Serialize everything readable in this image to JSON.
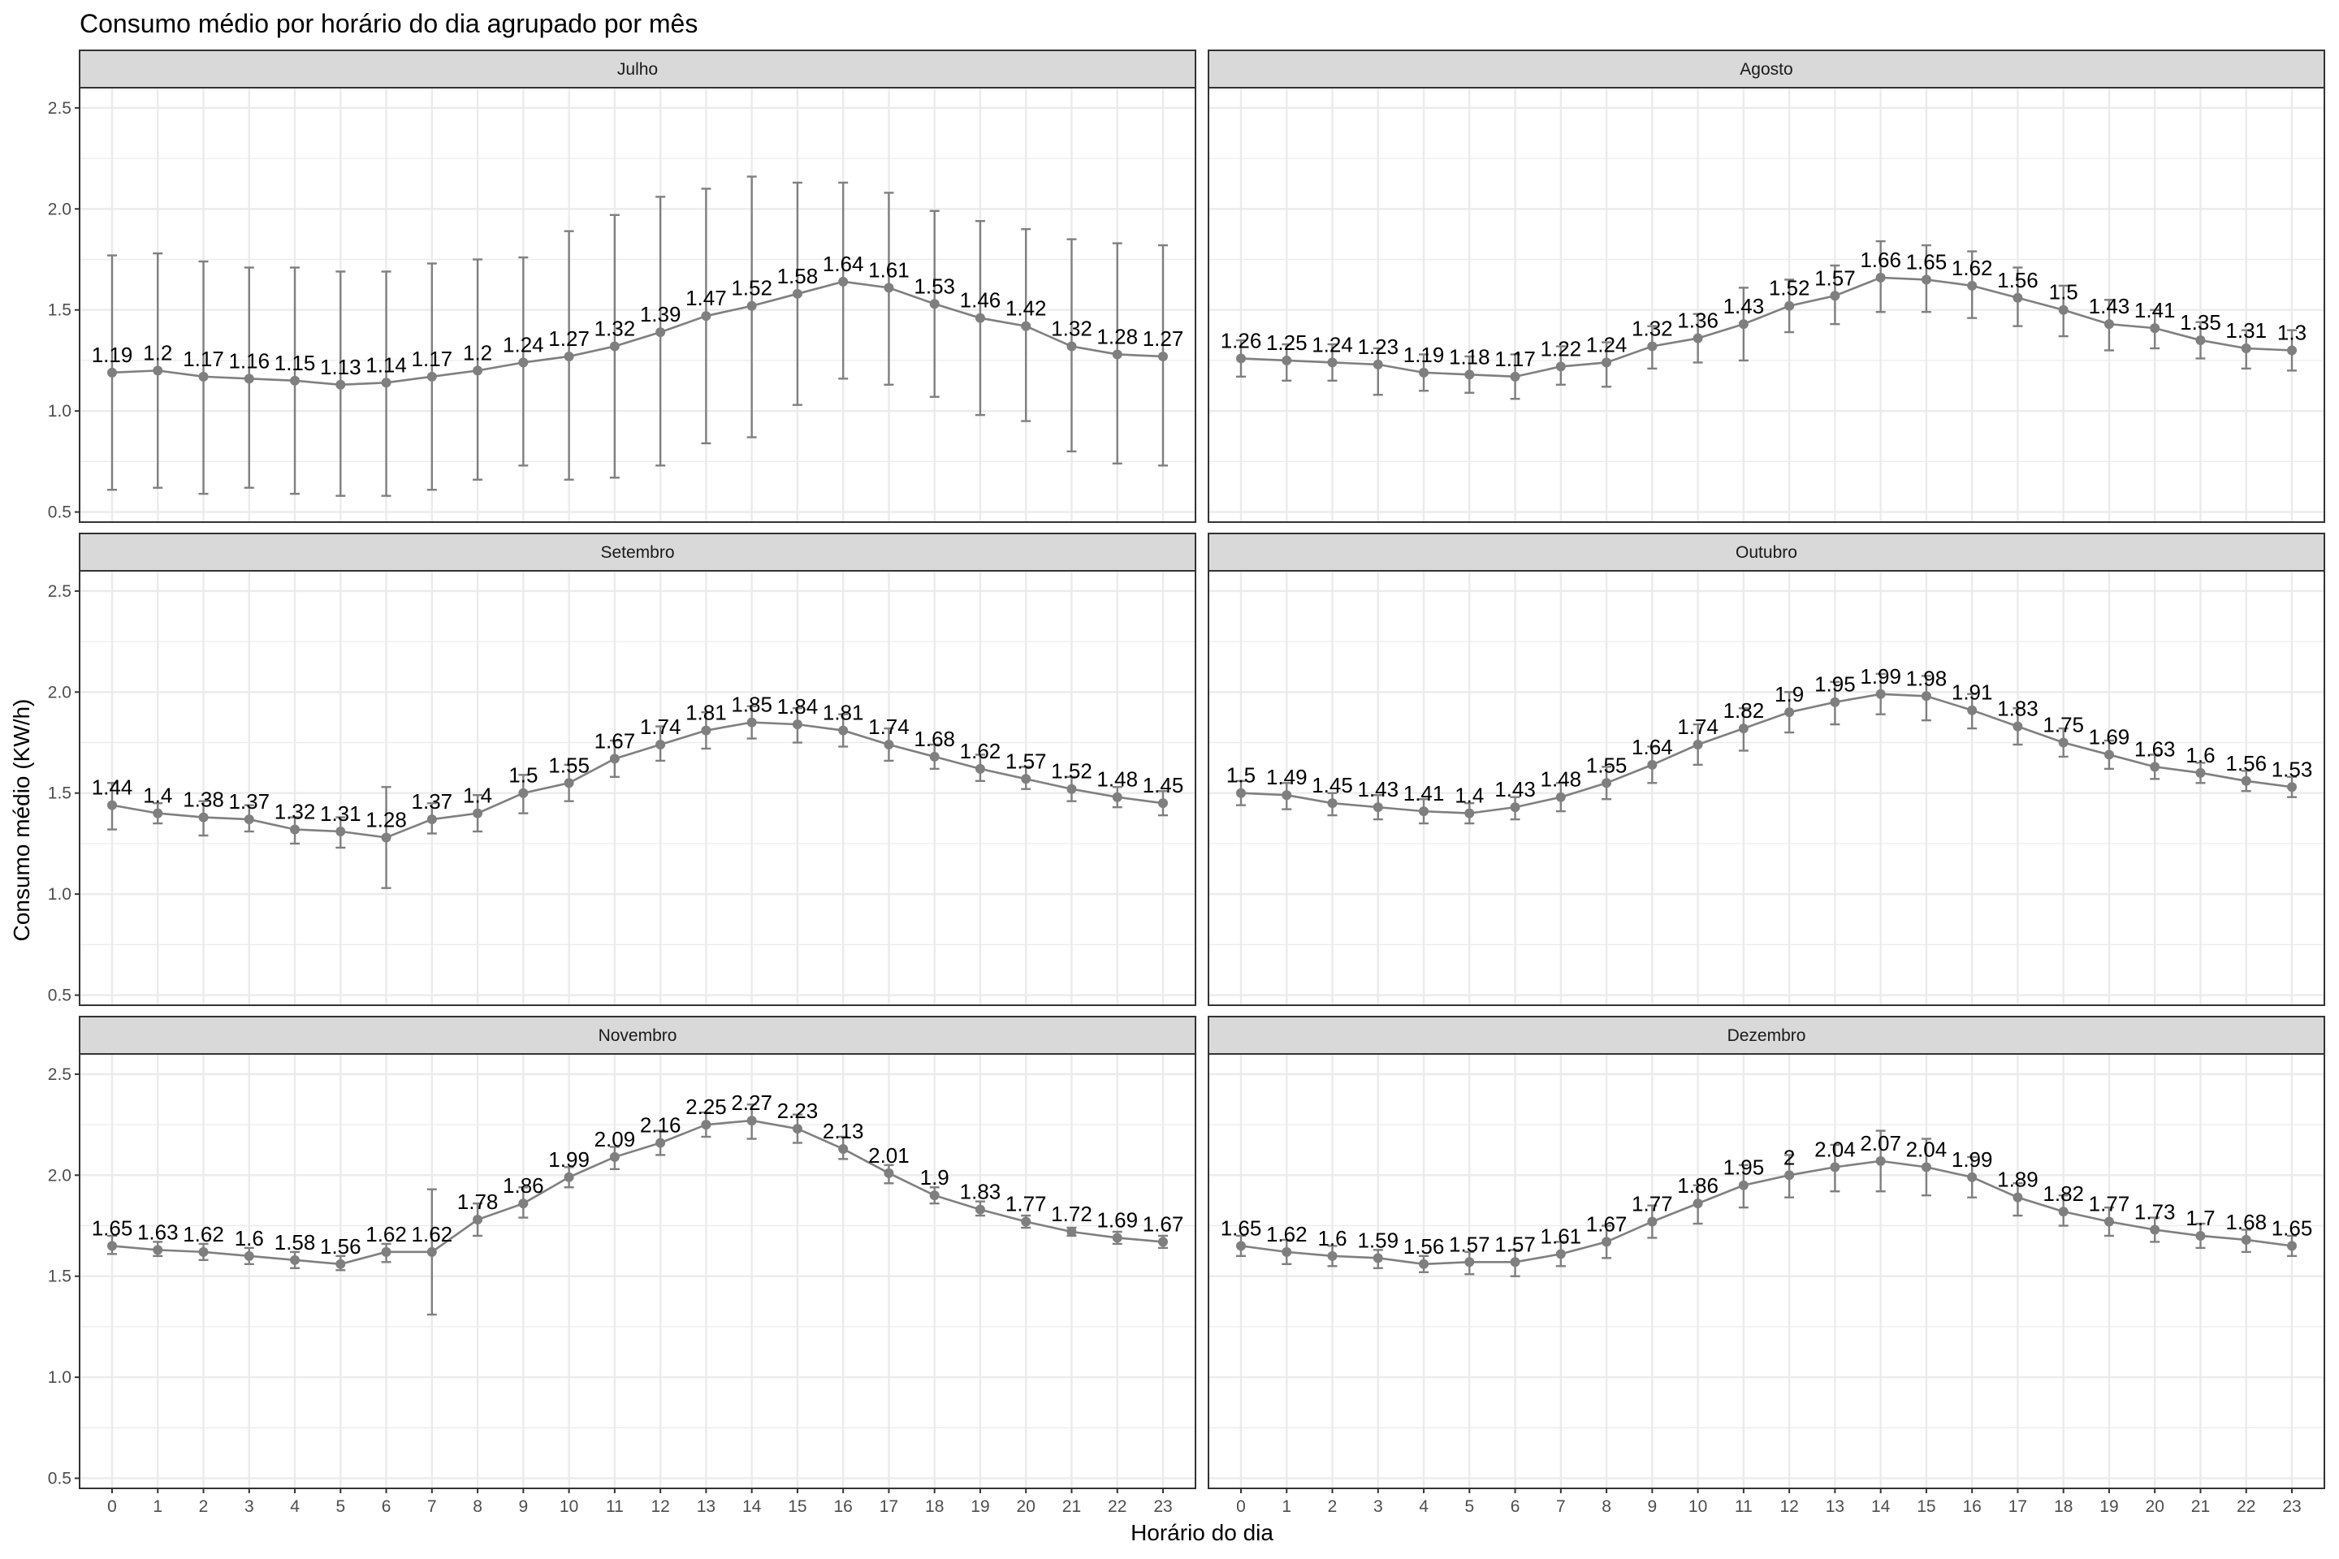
{
  "title": "Consumo médio por horário do dia agrupado por mês",
  "xlabel": "Horário do dia",
  "ylabel": "Consumo médio (KW/h)",
  "colors": {
    "line": "#7f7f7f",
    "strip": "#d9d9d9",
    "grid": "#ebebeb",
    "border": "#333333"
  },
  "chart_data": {
    "type": "line",
    "hours": [
      0,
      1,
      2,
      3,
      4,
      5,
      6,
      7,
      8,
      9,
      10,
      11,
      12,
      13,
      14,
      15,
      16,
      17,
      18,
      19,
      20,
      21,
      22,
      23
    ],
    "ylim": [
      0.45,
      2.6
    ],
    "yticks": [
      0.5,
      1.0,
      1.5,
      2.0,
      2.5
    ],
    "ytick_labels": [
      "0.5",
      "1.0",
      "1.5",
      "2.0",
      "2.5"
    ],
    "grid": true,
    "panels": [
      {
        "name": "Julho",
        "values": [
          1.19,
          1.2,
          1.17,
          1.16,
          1.15,
          1.13,
          1.14,
          1.17,
          1.2,
          1.24,
          1.27,
          1.32,
          1.39,
          1.47,
          1.52,
          1.58,
          1.64,
          1.61,
          1.53,
          1.46,
          1.42,
          1.32,
          1.28,
          1.27
        ],
        "labels": [
          "1.19",
          "1.2",
          "1.17",
          "1.16",
          "1.15",
          "1.13",
          "1.14",
          "1.17",
          "1.2",
          "1.24",
          "1.27",
          "1.32",
          "1.39",
          "1.47",
          "1.52",
          "1.58",
          "1.64",
          "1.61",
          "1.53",
          "1.46",
          "1.42",
          "1.32",
          "1.28",
          "1.27"
        ],
        "err_low": [
          0.61,
          0.62,
          0.59,
          0.62,
          0.59,
          0.58,
          0.58,
          0.61,
          0.66,
          0.73,
          0.66,
          0.67,
          0.73,
          0.84,
          0.87,
          1.03,
          1.16,
          1.13,
          1.07,
          0.98,
          0.95,
          0.8,
          0.74,
          0.73
        ],
        "err_high": [
          1.77,
          1.78,
          1.74,
          1.71,
          1.71,
          1.69,
          1.69,
          1.73,
          1.75,
          1.76,
          1.89,
          1.97,
          2.06,
          2.1,
          2.16,
          2.13,
          2.13,
          2.08,
          1.99,
          1.94,
          1.9,
          1.85,
          1.83,
          1.82
        ]
      },
      {
        "name": "Agosto",
        "values": [
          1.26,
          1.25,
          1.24,
          1.23,
          1.19,
          1.18,
          1.17,
          1.22,
          1.24,
          1.32,
          1.36,
          1.43,
          1.52,
          1.57,
          1.66,
          1.65,
          1.62,
          1.56,
          1.5,
          1.43,
          1.41,
          1.35,
          1.31,
          1.3
        ],
        "labels": [
          "1.26",
          "1.25",
          "1.24",
          "1.23",
          "1.19",
          "1.18",
          "1.17",
          "1.22",
          "1.24",
          "1.32",
          "1.36",
          "1.43",
          "1.52",
          "1.57",
          "1.66",
          "1.65",
          "1.62",
          "1.56",
          "1.5",
          "1.43",
          "1.41",
          "1.35",
          "1.31",
          "1.3"
        ],
        "err_low": [
          1.17,
          1.15,
          1.15,
          1.08,
          1.1,
          1.09,
          1.06,
          1.13,
          1.12,
          1.21,
          1.24,
          1.25,
          1.39,
          1.43,
          1.49,
          1.49,
          1.46,
          1.42,
          1.37,
          1.3,
          1.31,
          1.26,
          1.21,
          1.2
        ],
        "err_high": [
          1.35,
          1.33,
          1.33,
          1.31,
          1.28,
          1.27,
          1.28,
          1.32,
          1.34,
          1.42,
          1.48,
          1.61,
          1.65,
          1.72,
          1.84,
          1.82,
          1.79,
          1.71,
          1.62,
          1.55,
          1.5,
          1.44,
          1.4,
          1.4
        ]
      },
      {
        "name": "Setembro",
        "values": [
          1.44,
          1.4,
          1.38,
          1.37,
          1.32,
          1.31,
          1.28,
          1.37,
          1.4,
          1.5,
          1.55,
          1.67,
          1.74,
          1.81,
          1.85,
          1.84,
          1.81,
          1.74,
          1.68,
          1.62,
          1.57,
          1.52,
          1.48,
          1.45
        ],
        "labels": [
          "1.44",
          "1.4",
          "1.38",
          "1.37",
          "1.32",
          "1.31",
          "1.28",
          "1.37",
          "1.4",
          "1.5",
          "1.55",
          "1.67",
          "1.74",
          "1.81",
          "1.85",
          "1.84",
          "1.81",
          "1.74",
          "1.68",
          "1.62",
          "1.57",
          "1.52",
          "1.48",
          "1.45"
        ],
        "err_low": [
          1.32,
          1.35,
          1.29,
          1.31,
          1.25,
          1.23,
          1.03,
          1.3,
          1.31,
          1.4,
          1.46,
          1.58,
          1.66,
          1.72,
          1.77,
          1.75,
          1.73,
          1.66,
          1.62,
          1.56,
          1.52,
          1.46,
          1.43,
          1.39
        ],
        "err_high": [
          1.55,
          1.45,
          1.46,
          1.44,
          1.38,
          1.38,
          1.53,
          1.45,
          1.49,
          1.59,
          1.64,
          1.76,
          1.83,
          1.9,
          1.93,
          1.92,
          1.89,
          1.82,
          1.74,
          1.69,
          1.63,
          1.58,
          1.53,
          1.51
        ]
      },
      {
        "name": "Outubro",
        "values": [
          1.5,
          1.49,
          1.45,
          1.43,
          1.41,
          1.4,
          1.43,
          1.48,
          1.55,
          1.64,
          1.74,
          1.82,
          1.9,
          1.95,
          1.99,
          1.98,
          1.91,
          1.83,
          1.75,
          1.69,
          1.63,
          1.6,
          1.56,
          1.53
        ],
        "labels": [
          "1.5",
          "1.49",
          "1.45",
          "1.43",
          "1.41",
          "1.4",
          "1.43",
          "1.48",
          "1.55",
          "1.64",
          "1.74",
          "1.82",
          "1.9",
          "1.95",
          "1.99",
          "1.98",
          "1.91",
          "1.83",
          "1.75",
          "1.69",
          "1.63",
          "1.6",
          "1.56",
          "1.53"
        ],
        "err_low": [
          1.44,
          1.42,
          1.39,
          1.37,
          1.35,
          1.35,
          1.37,
          1.41,
          1.47,
          1.55,
          1.64,
          1.71,
          1.8,
          1.84,
          1.89,
          1.86,
          1.82,
          1.74,
          1.68,
          1.62,
          1.57,
          1.55,
          1.51,
          1.48
        ],
        "err_high": [
          1.56,
          1.55,
          1.5,
          1.49,
          1.47,
          1.45,
          1.48,
          1.55,
          1.63,
          1.73,
          1.84,
          1.92,
          2.0,
          2.05,
          2.09,
          2.08,
          1.99,
          1.92,
          1.82,
          1.76,
          1.69,
          1.65,
          1.61,
          1.58
        ]
      },
      {
        "name": "Novembro",
        "values": [
          1.65,
          1.63,
          1.62,
          1.6,
          1.58,
          1.56,
          1.62,
          1.62,
          1.78,
          1.86,
          1.99,
          2.09,
          2.16,
          2.25,
          2.27,
          2.23,
          2.13,
          2.01,
          1.9,
          1.83,
          1.77,
          1.72,
          1.69,
          1.67
        ],
        "labels": [
          "1.65",
          "1.63",
          "1.62",
          "1.6",
          "1.58",
          "1.56",
          "1.62",
          "1.62",
          "1.78",
          "1.86",
          "1.99",
          "2.09",
          "2.16",
          "2.25",
          "2.27",
          "2.23",
          "2.13",
          "2.01",
          "1.9",
          "1.83",
          "1.77",
          "1.72",
          "1.69",
          "1.67"
        ],
        "err_low": [
          1.61,
          1.6,
          1.58,
          1.56,
          1.54,
          1.53,
          1.57,
          1.31,
          1.7,
          1.79,
          1.94,
          2.03,
          2.1,
          2.19,
          2.18,
          2.16,
          2.08,
          1.96,
          1.86,
          1.8,
          1.74,
          1.7,
          1.66,
          1.64
        ],
        "err_high": [
          1.7,
          1.67,
          1.66,
          1.64,
          1.62,
          1.6,
          1.66,
          1.93,
          1.86,
          1.94,
          2.04,
          2.14,
          2.22,
          2.31,
          2.35,
          2.3,
          2.19,
          2.05,
          1.94,
          1.87,
          1.8,
          1.74,
          1.72,
          1.7
        ]
      },
      {
        "name": "Dezembro",
        "values": [
          1.65,
          1.62,
          1.6,
          1.59,
          1.56,
          1.57,
          1.57,
          1.61,
          1.67,
          1.77,
          1.86,
          1.95,
          2.0,
          2.04,
          2.07,
          2.04,
          1.99,
          1.89,
          1.82,
          1.77,
          1.73,
          1.7,
          1.68,
          1.65
        ],
        "labels": [
          "1.65",
          "1.62",
          "1.6",
          "1.59",
          "1.56",
          "1.57",
          "1.57",
          "1.61",
          "1.67",
          "1.77",
          "1.86",
          "1.95",
          "2",
          "2.04",
          "2.07",
          "2.04",
          "1.99",
          "1.89",
          "1.82",
          "1.77",
          "1.73",
          "1.7",
          "1.68",
          "1.65"
        ],
        "err_low": [
          1.6,
          1.56,
          1.55,
          1.54,
          1.52,
          1.51,
          1.5,
          1.55,
          1.59,
          1.69,
          1.76,
          1.84,
          1.89,
          1.92,
          1.92,
          1.9,
          1.89,
          1.8,
          1.75,
          1.7,
          1.67,
          1.64,
          1.62,
          1.6
        ],
        "err_high": [
          1.7,
          1.68,
          1.65,
          1.63,
          1.6,
          1.62,
          1.63,
          1.67,
          1.75,
          1.85,
          1.95,
          2.05,
          2.1,
          2.15,
          2.22,
          2.18,
          2.09,
          1.96,
          1.9,
          1.84,
          1.79,
          1.76,
          1.73,
          1.7
        ]
      }
    ]
  }
}
